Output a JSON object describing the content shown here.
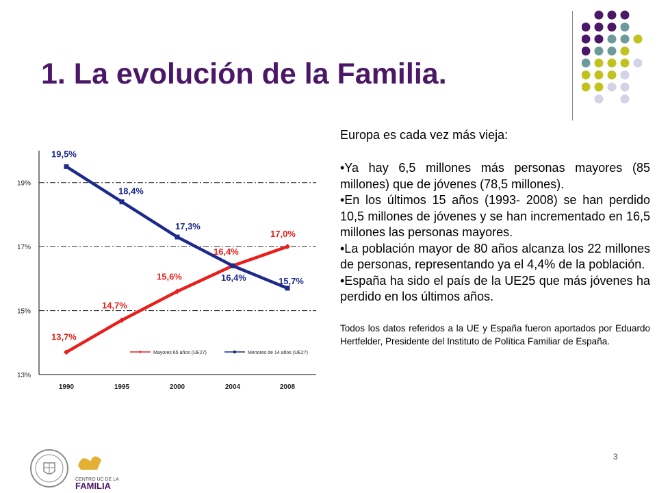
{
  "slide": {
    "title": "1. La evolución de la Familia.",
    "page_number": "3"
  },
  "text": {
    "intro": "Europa es cada vez más vieja:",
    "bullets": [
      "•Ya hay 6,5 millones más personas mayores (85 millones) que de jóvenes (78,5 millones).",
      "•En los últimos 15 años (1993- 2008) se han perdido 10,5 millones de jóvenes y se han incrementado en 16,5 millones las personas mayores.",
      "•La población mayor de 80 años alcanza los 22 millones de personas, representando ya el 4,4% de la población.",
      "•España ha sido el país de la UE25 que más jóvenes ha perdido en los últimos años."
    ],
    "footnote": "Todos los datos referidos a la UE y España fueron aportados por Eduardo Hertfelder, Presidente del Instituto de Política Familiar de España."
  },
  "logos": {
    "right_text_1": "CENTRO UC DE LA",
    "right_text_2": "FAMILIA"
  },
  "colors": {
    "title": "#4b1868",
    "mayores": "#e8201c",
    "menores": "#1c2a8c",
    "dot_purple": "#4b1868",
    "dot_teal": "#6f9a9c",
    "dot_olive": "#c2c21e",
    "dot_lavender": "#d2d3e6"
  },
  "chart_data": {
    "type": "line",
    "categories": [
      "1990",
      "1995",
      "2000",
      "2004",
      "2008"
    ],
    "ylim": [
      13,
      20
    ],
    "yticks": [
      13,
      15,
      17,
      19
    ],
    "ytick_labels": [
      "13%",
      "15%",
      "17%",
      "19%"
    ],
    "series": [
      {
        "name": "Mayores 65 años (UE27)",
        "color": "#e8201c",
        "values": [
          13.7,
          14.7,
          15.6,
          16.4,
          17.0
        ],
        "labels": [
          "13,7%",
          "14,7%",
          "15,6%",
          "16,4%",
          "17,0%"
        ]
      },
      {
        "name": "Menores de 14 años (UE27)",
        "color": "#1c2a8c",
        "values": [
          19.5,
          18.4,
          17.3,
          16.4,
          15.7
        ],
        "labels": [
          "19,5%",
          "18,4%",
          "17,3%",
          "16,4%",
          "15,7%"
        ]
      }
    ],
    "legend": "bottom-right",
    "grid": true
  }
}
